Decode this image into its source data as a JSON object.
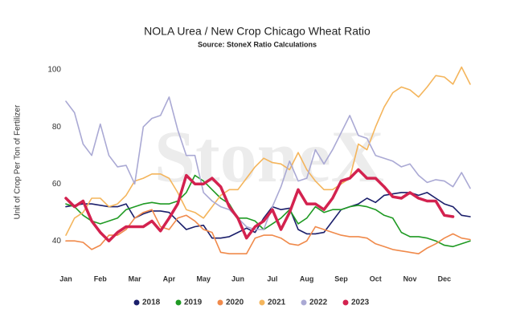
{
  "chart_data": {
    "type": "line",
    "title": "NOLA Urea / New Crop Chicago Wheat Ratio",
    "subtitle": "Source: StoneX Ratio Calculations",
    "watermark": "StoneX",
    "y_label": "Unit of Crop Per Ton of Fertilizer",
    "categories": [
      "Jan",
      null,
      null,
      null,
      "Feb",
      null,
      null,
      null,
      "Mar",
      null,
      null,
      null,
      "Apr",
      null,
      null,
      null,
      "May",
      null,
      null,
      null,
      "Jun",
      null,
      null,
      null,
      "Jul",
      null,
      null,
      null,
      "Aug",
      null,
      null,
      null,
      "Sep",
      null,
      null,
      null,
      "Oct",
      null,
      null,
      null,
      "Nov",
      null,
      null,
      null,
      "Dec",
      null,
      null,
      null
    ],
    "ylim": [
      35,
      102
    ],
    "yticks": [
      40,
      60,
      80,
      100
    ],
    "grid": false,
    "legend": "bottom",
    "series": [
      {
        "name": "2018",
        "color": "#1b1f6b",
        "values": [
          52,
          52.5,
          53,
          53,
          52.5,
          52,
          52,
          53,
          48,
          49.5,
          50.5,
          50.5,
          50,
          47,
          44,
          45,
          45.5,
          41,
          41,
          41.5,
          43,
          44.5,
          43,
          48,
          52,
          51,
          51.5,
          44,
          42.5,
          42.5,
          43,
          47,
          51,
          52,
          53,
          55,
          53.5,
          56,
          56.5,
          57,
          57,
          56,
          57,
          55,
          53,
          52,
          49,
          48.5
        ]
      },
      {
        "name": "2019",
        "color": "#1f9a23",
        "values": [
          53,
          52,
          49,
          47,
          46,
          47,
          48,
          51,
          52,
          53,
          53.5,
          53,
          53,
          54,
          57,
          63,
          61,
          58,
          55,
          53,
          48,
          48,
          47,
          44,
          46,
          48,
          51,
          46,
          48,
          52,
          50,
          51,
          51,
          52,
          52.5,
          52,
          51,
          49,
          48,
          43,
          41.5,
          41.5,
          41,
          40,
          38.5,
          38,
          39,
          40
        ]
      },
      {
        "name": "2020",
        "color": "#f08a4b",
        "values": [
          40,
          40,
          39.5,
          37,
          38.5,
          42,
          42,
          44,
          48,
          50,
          51,
          45,
          44,
          48,
          49,
          47,
          44,
          43,
          36,
          35.5,
          35.5,
          35.5,
          41,
          42,
          42,
          41,
          39,
          38.5,
          40,
          45,
          44,
          43,
          42,
          41.5,
          41.5,
          41,
          39,
          38,
          37,
          36.5,
          36,
          35.5,
          37.5,
          39,
          41,
          42.5,
          41,
          40.5
        ]
      },
      {
        "name": "2021",
        "color": "#f4b55c",
        "values": [
          42,
          48,
          50,
          55,
          55,
          52,
          53,
          56,
          61,
          62,
          63.5,
          63.5,
          62,
          57,
          51,
          50,
          48,
          52,
          56,
          58,
          58,
          62,
          66,
          69,
          67.5,
          67,
          65,
          71,
          65,
          61,
          58,
          58,
          60,
          62,
          74,
          72,
          80,
          87,
          92,
          94,
          93,
          90.5,
          94,
          98,
          97.5,
          95,
          101,
          95
        ]
      },
      {
        "name": "2022",
        "color": "#aaa9d4",
        "values": [
          89,
          85,
          74,
          70,
          81,
          70,
          66,
          66.5,
          60,
          80,
          83,
          84,
          90.5,
          79,
          70,
          70,
          57,
          54,
          52,
          51,
          48,
          45,
          44,
          44,
          52,
          59,
          68,
          61,
          62,
          72,
          67,
          72,
          78,
          84,
          77,
          76,
          70,
          69,
          68,
          66,
          67,
          63,
          60.5,
          61.5,
          61,
          59,
          64,
          58.5
        ]
      },
      {
        "name": "2023",
        "color": "#d3224f",
        "width": 3.5,
        "values": [
          55,
          52,
          54,
          47,
          43,
          40,
          43,
          45,
          45,
          45,
          47,
          43.5,
          48,
          53,
          63,
          60,
          60,
          62,
          59,
          52,
          48,
          41,
          45,
          47,
          51,
          44,
          50,
          58,
          53,
          53,
          51,
          55,
          61,
          62,
          65,
          62,
          62,
          59,
          55.5,
          55,
          57,
          55,
          54,
          54,
          49,
          48.5,
          null,
          null
        ]
      }
    ]
  }
}
